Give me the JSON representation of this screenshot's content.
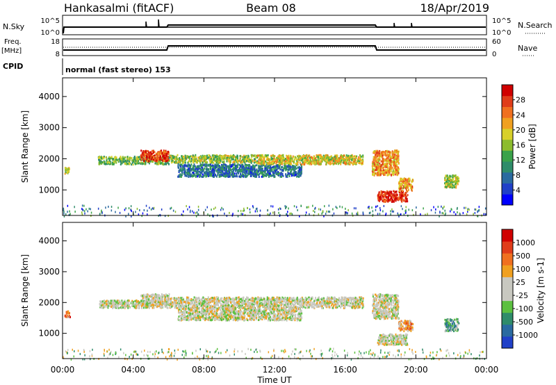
{
  "header": {
    "station": "Hankasalmi (fitACF)",
    "beam": "Beam 08",
    "date": "18/Apr/2019"
  },
  "top_panel": {
    "left_label": "N.Sky",
    "left_ticks": [
      "10^5",
      "10^0"
    ],
    "right_label": "N.Search",
    "right_ticks": [
      "10^5",
      "10^0"
    ]
  },
  "freq_panel": {
    "left_label_1": "Freq.",
    "left_label_2": "[MHz]",
    "left_ticks": [
      "18",
      "8"
    ],
    "right_label": "Nave",
    "right_ticks": [
      "60",
      "0"
    ]
  },
  "cpid": {
    "label": "CPID",
    "value": "normal (fast stereo) 153"
  },
  "time_axis": {
    "label": "Time UT",
    "ticks": [
      "00:00",
      "04:00",
      "08:00",
      "12:00",
      "16:00",
      "20:00",
      "00:00"
    ]
  },
  "chart_data": [
    {
      "type": "heatmap",
      "ylabel": "Slant Range [km]",
      "yticks": [
        1000,
        2000,
        3000,
        4000
      ],
      "ylim": [
        180,
        4600
      ],
      "xlim_hours": [
        0,
        24
      ],
      "colorbar": {
        "label": "Power [dB]",
        "ticks": [
          4,
          8,
          12,
          16,
          20,
          24,
          28
        ],
        "colors": [
          "#0000ff",
          "#2040c8",
          "#2a6aa0",
          "#2f8c6a",
          "#3aa24a",
          "#8cbc2e",
          "#d8d02a",
          "#f0a020",
          "#f07020",
          "#e03c1a",
          "#d00000"
        ]
      },
      "regions": [
        {
          "t": [
            2.0,
            6.0
          ],
          "r": [
            1850,
            2100
          ],
          "level": 0.45
        },
        {
          "t": [
            4.4,
            6.0
          ],
          "r": [
            1950,
            2300
          ],
          "level": 0.85
        },
        {
          "t": [
            6.0,
            11.0
          ],
          "r": [
            1900,
            2150
          ],
          "level": 0.5
        },
        {
          "t": [
            6.5,
            13.5
          ],
          "r": [
            1450,
            1850
          ],
          "level": 0.25
        },
        {
          "t": [
            11.0,
            17.0
          ],
          "r": [
            1850,
            2150
          ],
          "level": 0.6
        },
        {
          "t": [
            17.5,
            19.0
          ],
          "r": [
            1500,
            2300
          ],
          "level": 0.7
        },
        {
          "t": [
            17.8,
            19.5
          ],
          "r": [
            650,
            1000
          ],
          "level": 0.9
        },
        {
          "t": [
            19.0,
            19.8
          ],
          "r": [
            1000,
            1400
          ],
          "level": 0.7
        },
        {
          "t": [
            21.6,
            22.4
          ],
          "r": [
            1100,
            1500
          ],
          "level": 0.55
        },
        {
          "t": [
            0.1,
            0.4
          ],
          "r": [
            1550,
            1750
          ],
          "level": 0.55
        }
      ]
    },
    {
      "type": "heatmap",
      "ylabel": "Slant Range [km]",
      "yticks": [
        1000,
        2000,
        3000,
        4000
      ],
      "ylim": [
        180,
        4600
      ],
      "xlim_hours": [
        0,
        24
      ],
      "colorbar": {
        "label": "Velocity [m s-1]",
        "ticks": [
          1000,
          500,
          100,
          25,
          -25,
          -100,
          -500,
          -1000
        ],
        "colors": [
          "#2040c8",
          "#2a6aa0",
          "#2f8c6a",
          "#5cc040",
          "#c8c8c0",
          "#c8c8c0",
          "#f0a020",
          "#f07020",
          "#e03c1a",
          "#d00000"
        ]
      },
      "regions": [
        {
          "t": [
            2.0,
            6.0
          ],
          "r": [
            1850,
            2100
          ],
          "level": 0.5
        },
        {
          "t": [
            4.4,
            6.0
          ],
          "r": [
            1950,
            2300
          ],
          "level": 0.5
        },
        {
          "t": [
            6.0,
            17.0
          ],
          "r": [
            1850,
            2200
          ],
          "level": 0.5
        },
        {
          "t": [
            6.5,
            13.5
          ],
          "r": [
            1450,
            1850
          ],
          "level": 0.5
        },
        {
          "t": [
            17.5,
            19.0
          ],
          "r": [
            1500,
            2300
          ],
          "level": 0.5
        },
        {
          "t": [
            17.8,
            19.5
          ],
          "r": [
            650,
            1000
          ],
          "level": 0.5
        },
        {
          "t": [
            19.0,
            19.8
          ],
          "r": [
            1100,
            1450
          ],
          "level": 0.7
        },
        {
          "t": [
            21.6,
            22.4
          ],
          "r": [
            1100,
            1500
          ],
          "level": 0.3
        },
        {
          "t": [
            0.1,
            0.4
          ],
          "r": [
            1550,
            1750
          ],
          "level": 0.75
        }
      ]
    }
  ]
}
